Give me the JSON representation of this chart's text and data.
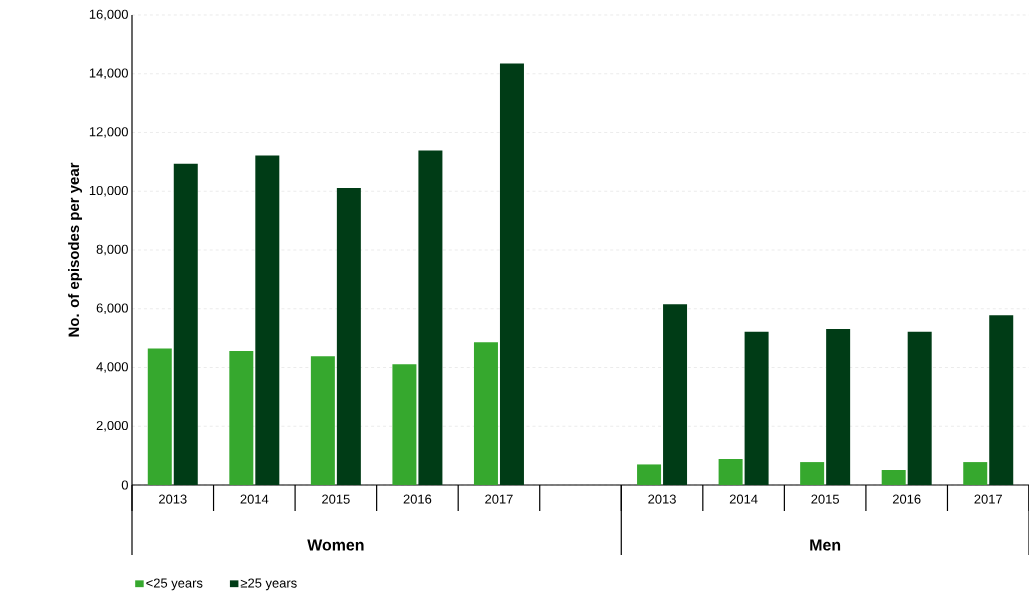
{
  "chart_data": {
    "type": "bar",
    "ylabel": "No. of episodes per year",
    "categories": [
      "2013",
      "2014",
      "2015",
      "2016",
      "2017",
      null,
      "2013",
      "2014",
      "2015",
      "2016",
      "2017"
    ],
    "series": [
      {
        "name": "<25 years",
        "color": "#36a82e",
        "values": [
          4650,
          4560,
          4380,
          4110,
          4860,
          null,
          700,
          885,
          780,
          510,
          780
        ]
      },
      {
        "name": "≥25 years",
        "color": "#003c16",
        "values": [
          10940,
          11220,
          10110,
          11390,
          14350,
          null,
          6150,
          5220,
          5310,
          5220,
          5780
        ]
      }
    ],
    "annotations": [
      "Women",
      "Men"
    ],
    "ylim": [
      0,
      16000
    ],
    "yticks": [
      {
        "value": 0,
        "label": "0"
      },
      {
        "value": 2000,
        "label": "2,000"
      },
      {
        "value": 4000,
        "label": "4,000"
      },
      {
        "value": 6000,
        "label": "6,000"
      },
      {
        "value": 8000,
        "label": "8,000"
      },
      {
        "value": 10000,
        "label": "10,000"
      },
      {
        "value": 12000,
        "label": "12,000"
      },
      {
        "value": 14000,
        "label": "14,000"
      },
      {
        "value": 16000,
        "label": "16,000"
      }
    ],
    "grid": "y",
    "legend": "bottom left"
  }
}
